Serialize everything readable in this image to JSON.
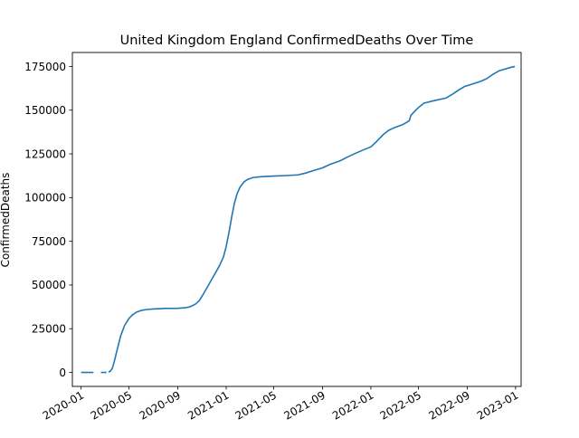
{
  "chart_data": {
    "type": "line",
    "title": "United Kingdom England ConfirmedDeaths Over Time",
    "xlabel": "",
    "ylabel": "ConfirmedDeaths",
    "grid": false,
    "legend": "none",
    "xlim": [
      "2019-12-10",
      "2023-01-15"
    ],
    "ylim": [
      -8000,
      183000
    ],
    "x_ticks": [
      "2020-01",
      "2020-05",
      "2020-09",
      "2021-01",
      "2021-05",
      "2021-09",
      "2022-01",
      "2022-05",
      "2022-09",
      "2023-01"
    ],
    "y_ticks": [
      0,
      25000,
      50000,
      75000,
      100000,
      125000,
      150000,
      175000
    ],
    "y_tick_labels": [
      "0",
      "25000",
      "50000",
      "75000",
      "100000",
      "125000",
      "150000",
      "175000"
    ],
    "series": [
      {
        "color": "#1f77b4",
        "segments": [
          [
            [
              "2020-01-01",
              0
            ],
            [
              "2020-02-01",
              0
            ]
          ],
          [
            [
              "2020-02-20",
              0
            ],
            [
              "2020-03-05",
              0
            ]
          ],
          [
            [
              "2020-03-10",
              200
            ],
            [
              "2020-03-15",
              800
            ],
            [
              "2020-03-20",
              2500
            ],
            [
              "2020-03-25",
              6500
            ],
            [
              "2020-04-01",
              13000
            ],
            [
              "2020-04-10",
              21000
            ],
            [
              "2020-04-20",
              27000
            ],
            [
              "2020-05-01",
              31000
            ],
            [
              "2020-05-10",
              33000
            ],
            [
              "2020-05-20",
              34500
            ],
            [
              "2020-06-01",
              35500
            ],
            [
              "2020-06-15",
              36000
            ],
            [
              "2020-07-01",
              36300
            ],
            [
              "2020-08-01",
              36600
            ],
            [
              "2020-09-01",
              36700
            ],
            [
              "2020-09-20",
              37000
            ],
            [
              "2020-10-01",
              37500
            ],
            [
              "2020-10-15",
              39000
            ],
            [
              "2020-10-25",
              41000
            ],
            [
              "2020-11-05",
              45000
            ],
            [
              "2020-11-15",
              49000
            ],
            [
              "2020-11-25",
              53000
            ],
            [
              "2020-12-05",
              57000
            ],
            [
              "2020-12-15",
              61000
            ],
            [
              "2020-12-25",
              66000
            ],
            [
              "2021-01-01",
              72000
            ],
            [
              "2021-01-08",
              80000
            ],
            [
              "2021-01-15",
              89000
            ],
            [
              "2021-01-22",
              97000
            ],
            [
              "2021-01-29",
              102500
            ],
            [
              "2021-02-05",
              106000
            ],
            [
              "2021-02-15",
              109000
            ],
            [
              "2021-02-25",
              110500
            ],
            [
              "2021-03-10",
              111500
            ],
            [
              "2021-04-01",
              112000
            ],
            [
              "2021-05-01",
              112300
            ],
            [
              "2021-06-01",
              112600
            ],
            [
              "2021-07-01",
              113000
            ],
            [
              "2021-07-20",
              114000
            ],
            [
              "2021-08-10",
              115500
            ],
            [
              "2021-09-01",
              117000
            ],
            [
              "2021-09-20",
              119000
            ],
            [
              "2021-10-15",
              121000
            ],
            [
              "2021-11-01",
              123000
            ],
            [
              "2021-11-20",
              125000
            ],
            [
              "2021-12-10",
              127000
            ],
            [
              "2022-01-01",
              129000
            ],
            [
              "2022-01-15",
              132000
            ],
            [
              "2022-02-01",
              136000
            ],
            [
              "2022-02-15",
              138500
            ],
            [
              "2022-03-01",
              140000
            ],
            [
              "2022-03-20",
              141500
            ],
            [
              "2022-04-01",
              143000
            ],
            [
              "2022-04-08",
              144000
            ],
            [
              "2022-04-12",
              147000
            ],
            [
              "2022-04-20",
              149000
            ],
            [
              "2022-05-01",
              151500
            ],
            [
              "2022-05-15",
              154000
            ],
            [
              "2022-06-01",
              155000
            ],
            [
              "2022-06-20",
              156000
            ],
            [
              "2022-07-10",
              157000
            ],
            [
              "2022-07-25",
              159000
            ],
            [
              "2022-08-10",
              161500
            ],
            [
              "2022-08-25",
              163500
            ],
            [
              "2022-09-15",
              165000
            ],
            [
              "2022-10-05",
              166500
            ],
            [
              "2022-10-20",
              168000
            ],
            [
              "2022-11-05",
              170500
            ],
            [
              "2022-11-20",
              172500
            ],
            [
              "2022-12-05",
              173500
            ],
            [
              "2022-12-20",
              174500
            ],
            [
              "2022-12-30",
              175000
            ]
          ]
        ]
      }
    ]
  }
}
